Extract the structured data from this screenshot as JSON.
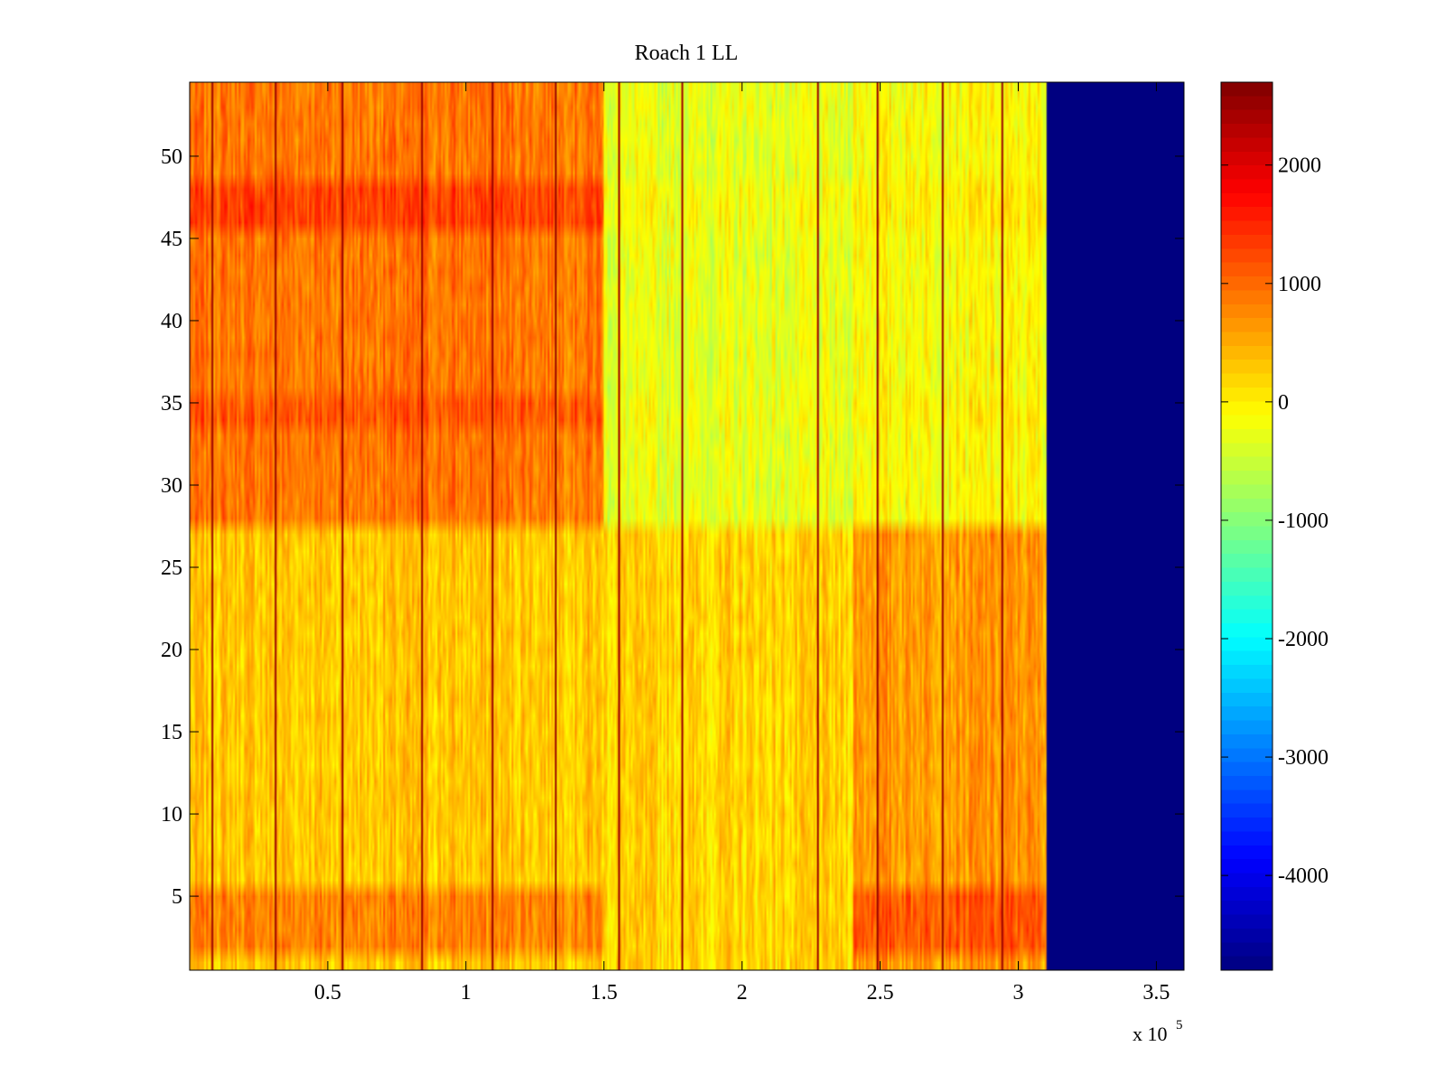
{
  "chart_data": {
    "type": "heatmap",
    "title": "Roach 1 LL",
    "xlabel": "",
    "ylabel": "",
    "x_multiplier_label": "x 10",
    "x_multiplier_exponent": "5",
    "xlim": [
      0,
      360000
    ],
    "ylim": [
      0.5,
      54.5
    ],
    "x_ticks": [
      50000,
      100000,
      150000,
      200000,
      250000,
      300000,
      350000
    ],
    "x_tick_labels": [
      "0.5",
      "1",
      "1.5",
      "2",
      "2.5",
      "3",
      "3.5"
    ],
    "y_ticks": [
      5,
      10,
      15,
      20,
      25,
      30,
      35,
      40,
      45,
      50
    ],
    "y_tick_labels": [
      "5",
      "10",
      "15",
      "20",
      "25",
      "30",
      "35",
      "40",
      "45",
      "50"
    ],
    "rows": 54,
    "colormap": "jet",
    "colorbar": {
      "range": [
        -4800,
        2700
      ],
      "ticks": [
        2000,
        1000,
        0,
        -1000,
        -2000,
        -3000,
        -4000
      ],
      "tick_labels": [
        "2000",
        "1000",
        "0",
        "-1000",
        "-2000",
        "-3000",
        "-4000"
      ]
    },
    "data_end_x": 310000,
    "fill_value_after_end": -4800,
    "column_bands": [
      {
        "x_start": 0,
        "x_end": 150000,
        "rows_1_to_27_level": 300,
        "rows_28_to_54_level": 900
      },
      {
        "x_start": 150000,
        "x_end": 240000,
        "rows_1_to_27_level": 200,
        "rows_28_to_54_level": -300
      },
      {
        "x_start": 240000,
        "x_end": 310000,
        "rows_1_to_27_level": 650,
        "rows_28_to_54_level": -100
      }
    ],
    "hot_rows": [
      {
        "rows": [
          46,
          47,
          48
        ],
        "extra_level": 400
      },
      {
        "rows": [
          34,
          35
        ],
        "extra_level": 250
      },
      {
        "rows": [
          2,
          3,
          4,
          5
        ],
        "extra_level": 500
      }
    ],
    "vertical_spike_lines_x": [
      8000,
      31000,
      55000,
      84000,
      109000,
      132000,
      155000,
      178000,
      227000,
      249000,
      272000,
      294000
    ],
    "vertical_spike_value": 2200,
    "noise_amplitude": 500
  },
  "colors": {
    "axis": "#000000",
    "background": "#ffffff"
  }
}
